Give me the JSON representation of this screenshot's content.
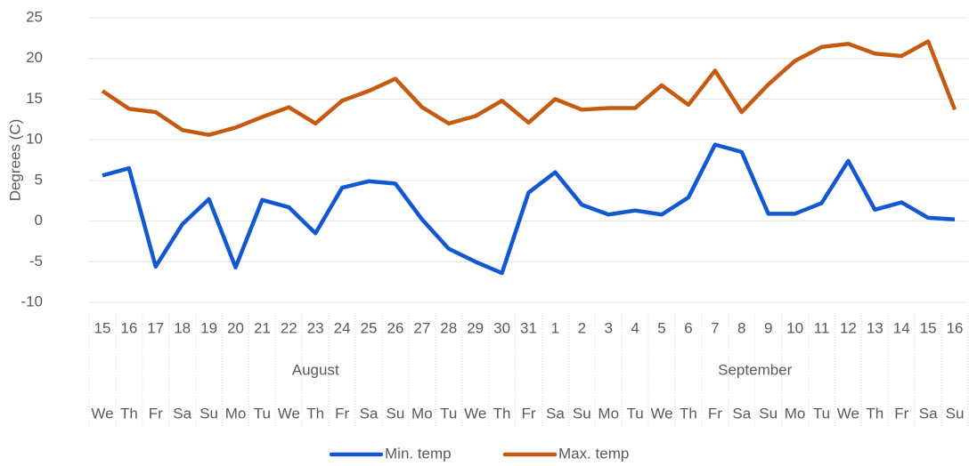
{
  "chart_data": {
    "type": "line",
    "y_label": "Degrees (C)",
    "categories": [
      "15",
      "16",
      "17",
      "18",
      "19",
      "20",
      "21",
      "22",
      "23",
      "24",
      "25",
      "26",
      "27",
      "28",
      "29",
      "30",
      "31",
      "1",
      "2",
      "3",
      "4",
      "5",
      "6",
      "7",
      "8",
      "9",
      "10",
      "11",
      "12",
      "13",
      "14",
      "15",
      "16"
    ],
    "weekdays": [
      "We",
      "Th",
      "Fr",
      "Sa",
      "Su",
      "Mo",
      "Tu",
      "We",
      "Th",
      "Fr",
      "Sa",
      "Su",
      "Mo",
      "Tu",
      "We",
      "Th",
      "Fr",
      "Sa",
      "Su",
      "Mo",
      "Tu",
      "We",
      "Th",
      "Fr",
      "Sa",
      "Su",
      "Mo",
      "Tu",
      "We",
      "Th",
      "Fr",
      "Sa",
      "Su"
    ],
    "months": [
      "August",
      null,
      null,
      null,
      null,
      null,
      null,
      null,
      null,
      null,
      null,
      null,
      null,
      null,
      null,
      null,
      null,
      "September",
      null,
      null,
      null,
      null,
      null,
      null,
      null,
      null,
      null,
      null,
      null,
      null,
      null,
      null,
      null
    ],
    "series": [
      {
        "name": "Min. temp",
        "color": "#1258d3",
        "values": [
          5.6,
          6.5,
          -5.6,
          -0.4,
          2.7,
          -5.7,
          2.6,
          1.7,
          -1.5,
          4.1,
          4.9,
          4.6,
          0.2,
          -3.4,
          -5.0,
          -6.4,
          3.5,
          6.0,
          2.0,
          0.8,
          1.3,
          0.8,
          2.9,
          9.4,
          8.5,
          0.9,
          0.9,
          2.2,
          7.4,
          1.4,
          2.3,
          0.4,
          0.2
        ]
      },
      {
        "name": "Max. temp",
        "color": "#c55a11",
        "values": [
          16.0,
          13.8,
          13.4,
          11.2,
          10.6,
          11.5,
          12.8,
          14.0,
          12.0,
          14.8,
          16.0,
          17.5,
          14.0,
          12.0,
          12.9,
          14.8,
          12.1,
          15.0,
          13.7,
          13.9,
          13.9,
          16.7,
          14.3,
          18.5,
          13.4,
          16.8,
          19.7,
          21.4,
          21.8,
          20.6,
          20.3,
          22.1,
          13.7
        ]
      }
    ],
    "ylim": [
      -10,
      25
    ],
    "yticks": [
      -10,
      -5,
      0,
      5,
      10,
      15,
      20,
      25
    ],
    "grid": true,
    "legend": "bottom"
  }
}
